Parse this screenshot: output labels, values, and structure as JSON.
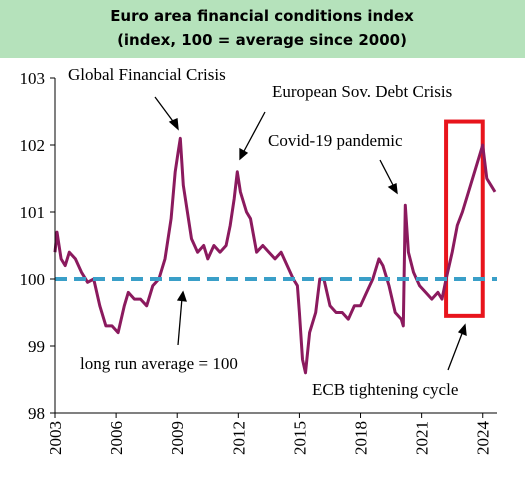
{
  "chart_data": {
    "type": "line",
    "title": "Euro area financial conditions index",
    "subtitle": "(index, 100 = average since 2000)",
    "x": [
      2003.0,
      2003.1,
      2003.3,
      2003.5,
      2003.7,
      2004.0,
      2004.3,
      2004.6,
      2004.9,
      2005.2,
      2005.5,
      2005.8,
      2006.1,
      2006.4,
      2006.6,
      2006.9,
      2007.2,
      2007.5,
      2007.8,
      2008.1,
      2008.4,
      2008.7,
      2008.9,
      2009.05,
      2009.15,
      2009.3,
      2009.5,
      2009.7,
      2010.0,
      2010.3,
      2010.5,
      2010.8,
      2011.1,
      2011.4,
      2011.6,
      2011.8,
      2011.95,
      2012.1,
      2012.4,
      2012.6,
      2012.9,
      2013.2,
      2013.5,
      2013.8,
      2014.1,
      2014.4,
      2014.7,
      2014.9,
      2015.0,
      2015.15,
      2015.3,
      2015.5,
      2015.8,
      2016.0,
      2016.2,
      2016.5,
      2016.8,
      2017.1,
      2017.4,
      2017.7,
      2018.0,
      2018.3,
      2018.6,
      2018.9,
      2019.1,
      2019.4,
      2019.7,
      2020.0,
      2020.1,
      2020.2,
      2020.35,
      2020.6,
      2020.9,
      2021.2,
      2021.5,
      2021.8,
      2022.0,
      2022.2,
      2022.5,
      2022.75,
      2023.0,
      2023.3,
      2023.6,
      2023.9,
      2024.0,
      2024.2,
      2024.4,
      2024.6
    ],
    "series": [
      {
        "name": "Euro area financial conditions index",
        "color": "#8b1a5e",
        "values": [
          100.4,
          100.7,
          100.3,
          100.2,
          100.4,
          100.3,
          100.1,
          99.95,
          100.0,
          99.6,
          99.3,
          99.3,
          99.2,
          99.6,
          99.8,
          99.7,
          99.7,
          99.6,
          99.9,
          100.0,
          100.3,
          100.9,
          101.6,
          101.9,
          102.1,
          101.4,
          101.0,
          100.6,
          100.4,
          100.5,
          100.3,
          100.5,
          100.4,
          100.5,
          100.8,
          101.2,
          101.6,
          101.3,
          101.0,
          100.9,
          100.4,
          100.5,
          100.4,
          100.3,
          100.4,
          100.2,
          100.0,
          99.9,
          99.5,
          98.8,
          98.6,
          99.2,
          99.5,
          100.0,
          100.0,
          99.6,
          99.5,
          99.5,
          99.4,
          99.6,
          99.6,
          99.8,
          100.0,
          100.3,
          100.2,
          99.9,
          99.5,
          99.4,
          99.3,
          101.1,
          100.4,
          100.1,
          99.9,
          99.8,
          99.7,
          99.8,
          99.7,
          100.0,
          100.4,
          100.8,
          101.0,
          101.3,
          101.6,
          101.9,
          102.0,
          101.5,
          101.4,
          101.3
        ]
      }
    ],
    "xlim": [
      2003,
      2024.7
    ],
    "xticks": [
      2003,
      2006,
      2009,
      2012,
      2015,
      2018,
      2021,
      2024
    ],
    "ylim": [
      98,
      103
    ],
    "yticks": [
      98,
      99,
      100,
      101,
      102,
      103
    ],
    "reference_line": 100,
    "reference_color": "#3a9fc8",
    "highlight": {
      "xlim": [
        2022.2,
        2024.0
      ],
      "ylim": [
        99.45,
        102.35
      ],
      "color": "#e8141c"
    },
    "annotations": [
      "Global Financial Crisis",
      "European Sov. Debt Crisis",
      "Covid-19 pandemic",
      "long run average  = 100",
      "ECB tightening cycle"
    ]
  }
}
